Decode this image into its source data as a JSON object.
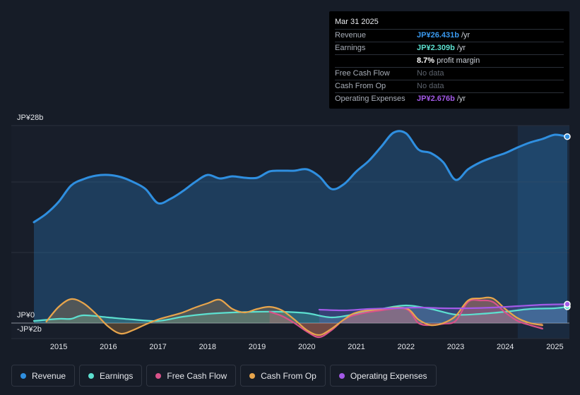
{
  "chart_data": {
    "type": "area",
    "y_labels": {
      "top": "JP¥28b",
      "zero": "JP¥0",
      "bottom": "-JP¥2b"
    },
    "ylim": [
      -2,
      28
    ],
    "xlim": [
      2014.5,
      2025.25
    ],
    "x_ticks": [
      "2015",
      "2016",
      "2017",
      "2018",
      "2019",
      "2020",
      "2021",
      "2022",
      "2023",
      "2024",
      "2025"
    ],
    "x_tick_values": [
      2015,
      2016,
      2017,
      2018,
      2019,
      2020,
      2021,
      2022,
      2023,
      2024,
      2025
    ],
    "forecast_start": 2024.25,
    "series": [
      {
        "name": "Revenue",
        "color": "#2f8fe0",
        "x": [
          2014.5,
          2014.75,
          2015.0,
          2015.25,
          2015.5,
          2015.75,
          2016.0,
          2016.25,
          2016.5,
          2016.75,
          2017.0,
          2017.25,
          2017.5,
          2017.75,
          2018.0,
          2018.25,
          2018.5,
          2018.75,
          2019.0,
          2019.25,
          2019.5,
          2019.75,
          2020.0,
          2020.25,
          2020.5,
          2020.75,
          2021.0,
          2021.25,
          2021.5,
          2021.75,
          2022.0,
          2022.25,
          2022.5,
          2022.75,
          2023.0,
          2023.25,
          2023.5,
          2023.75,
          2024.0,
          2024.25,
          2024.5,
          2024.75,
          2025.0,
          2025.25
        ],
        "values": [
          14.3,
          15.5,
          17.2,
          19.5,
          20.4,
          20.9,
          21.0,
          20.7,
          20.0,
          19.0,
          17.0,
          17.6,
          18.7,
          20.0,
          21.0,
          20.5,
          20.8,
          20.6,
          20.6,
          21.5,
          21.6,
          21.6,
          21.8,
          20.8,
          19.0,
          19.7,
          21.5,
          23.0,
          25.0,
          27.0,
          26.9,
          24.6,
          24.1,
          22.8,
          20.3,
          21.8,
          22.8,
          23.5,
          24.1,
          24.9,
          25.6,
          26.1,
          26.7,
          26.43
        ]
      },
      {
        "name": "Earnings",
        "color": "#5de0d0",
        "x": [
          2014.5,
          2015.0,
          2015.25,
          2015.5,
          2016.0,
          2016.5,
          2017.0,
          2017.5,
          2018.0,
          2018.5,
          2019.0,
          2019.5,
          2020.0,
          2020.5,
          2021.0,
          2021.5,
          2022.0,
          2022.5,
          2023.0,
          2023.5,
          2024.0,
          2024.5,
          2025.0,
          2025.25
        ],
        "values": [
          0.3,
          0.6,
          0.6,
          1.1,
          0.8,
          0.5,
          0.3,
          0.9,
          1.3,
          1.5,
          1.6,
          1.6,
          1.4,
          0.8,
          1.3,
          2.0,
          2.5,
          2.0,
          1.2,
          1.3,
          1.6,
          2.0,
          2.1,
          2.309
        ]
      },
      {
        "name": "Free Cash Flow",
        "color": "#d9528a",
        "x": [
          2019.25,
          2019.5,
          2019.75,
          2020.0,
          2020.25,
          2020.5,
          2020.75,
          2021.0,
          2021.5,
          2022.0,
          2022.25,
          2022.5,
          2022.75,
          2023.0,
          2023.25,
          2023.5,
          2023.75,
          2024.0,
          2024.25,
          2024.5,
          2024.75
        ],
        "values": [
          1.6,
          1.0,
          0.0,
          -1.2,
          -2.0,
          -1.0,
          0.5,
          1.2,
          1.8,
          2.0,
          0.0,
          -0.3,
          -0.1,
          0.3,
          3.0,
          3.2,
          3.0,
          1.5,
          0.3,
          -0.3,
          -0.8
        ]
      },
      {
        "name": "Cash From Op",
        "color": "#e8a54c",
        "x": [
          2014.75,
          2015.0,
          2015.25,
          2015.5,
          2015.75,
          2016.0,
          2016.25,
          2016.5,
          2016.75,
          2017.0,
          2017.25,
          2017.5,
          2017.75,
          2018.0,
          2018.25,
          2018.5,
          2018.75,
          2019.0,
          2019.25,
          2019.5,
          2019.75,
          2020.0,
          2020.25,
          2020.5,
          2020.75,
          2021.0,
          2021.5,
          2022.0,
          2022.25,
          2022.5,
          2022.75,
          2023.0,
          2023.25,
          2023.5,
          2023.75,
          2024.0,
          2024.25,
          2024.5,
          2024.75
        ],
        "values": [
          0.2,
          2.3,
          3.4,
          2.8,
          1.3,
          -0.5,
          -1.5,
          -1.0,
          -0.2,
          0.5,
          1.0,
          1.5,
          2.2,
          2.8,
          3.3,
          2.0,
          1.5,
          2.0,
          2.3,
          1.8,
          0.5,
          -1.0,
          -1.7,
          -0.8,
          0.5,
          1.5,
          2.0,
          2.1,
          0.5,
          -0.3,
          0.0,
          1.0,
          3.2,
          3.5,
          3.5,
          2.0,
          0.7,
          0.0,
          -0.3
        ]
      },
      {
        "name": "Operating Expenses",
        "color": "#a35ae8",
        "x": [
          2020.25,
          2020.75,
          2021.25,
          2021.75,
          2022.25,
          2022.75,
          2023.25,
          2023.75,
          2024.25,
          2024.75,
          2025.25
        ],
        "values": [
          1.9,
          1.8,
          2.0,
          2.1,
          2.2,
          2.1,
          2.1,
          2.2,
          2.4,
          2.6,
          2.676
        ]
      }
    ]
  },
  "tooltip": {
    "date": "Mar 31 2025",
    "rows": [
      {
        "label": "Revenue",
        "value": "JP¥26.431b",
        "unit": "/yr",
        "color": "#3a9af0"
      },
      {
        "label": "Earnings",
        "value": "JP¥2.309b",
        "unit": "/yr",
        "color": "#5de0d0"
      },
      {
        "label": "",
        "value": "8.7%",
        "unit": "profit margin",
        "color": "#ffffff"
      },
      {
        "label": "Free Cash Flow",
        "value": "No data",
        "unit": "",
        "color": ""
      },
      {
        "label": "Cash From Op",
        "value": "No data",
        "unit": "",
        "color": ""
      },
      {
        "label": "Operating Expenses",
        "value": "JP¥2.676b",
        "unit": "/yr",
        "color": "#a35ae8"
      }
    ]
  },
  "legend": [
    {
      "label": "Revenue",
      "color": "#2f8fe0"
    },
    {
      "label": "Earnings",
      "color": "#5de0d0"
    },
    {
      "label": "Free Cash Flow",
      "color": "#d9528a"
    },
    {
      "label": "Cash From Op",
      "color": "#e8a54c"
    },
    {
      "label": "Operating Expenses",
      "color": "#a35ae8"
    }
  ]
}
